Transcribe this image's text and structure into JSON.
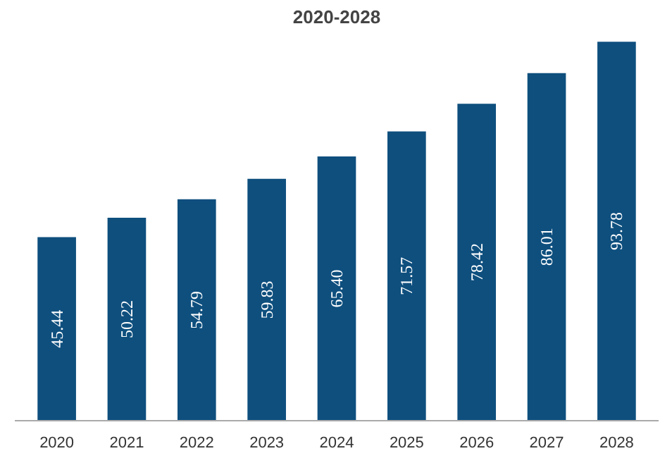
{
  "chart_data": {
    "type": "bar",
    "title": "2020-2028",
    "categories": [
      "2020",
      "2021",
      "2022",
      "2023",
      "2024",
      "2025",
      "2026",
      "2027",
      "2028"
    ],
    "values": [
      45.44,
      50.22,
      54.79,
      59.83,
      65.4,
      71.57,
      78.42,
      86.01,
      93.78
    ],
    "value_labels": [
      "45.44",
      "50.22",
      "54.79",
      "59.83",
      "65.40",
      "71.57",
      "78.42",
      "86.01",
      "93.78"
    ],
    "color": "#0e4f7e",
    "grid": false
  }
}
